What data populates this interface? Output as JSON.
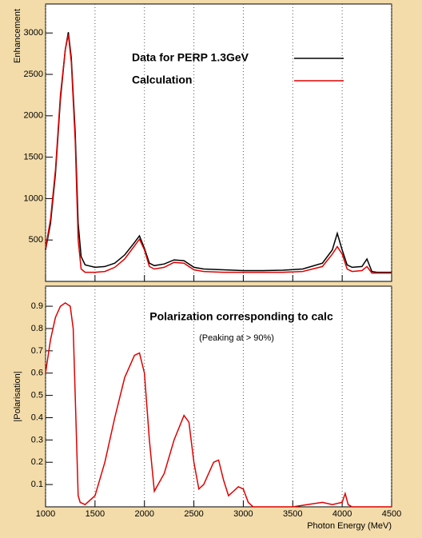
{
  "chart_data": [
    {
      "type": "line",
      "ylabel": "Enhancement",
      "x": [
        1000,
        1050,
        1100,
        1150,
        1200,
        1230,
        1260,
        1300,
        1330,
        1360,
        1400,
        1500,
        1600,
        1700,
        1800,
        1900,
        1950,
        2000,
        2050,
        2100,
        2200,
        2300,
        2400,
        2500,
        2600,
        2800,
        3000,
        3200,
        3400,
        3600,
        3800,
        3900,
        3950,
        4000,
        4050,
        4100,
        4200,
        4250,
        4300,
        4350,
        4400,
        4500
      ],
      "series": [
        {
          "name": "Data for PERP 1.3GeV",
          "color": "#000000",
          "values": [
            380,
            700,
            1300,
            2200,
            2800,
            3010,
            2700,
            1800,
            700,
            300,
            200,
            170,
            180,
            220,
            320,
            470,
            550,
            400,
            220,
            190,
            210,
            260,
            250,
            170,
            150,
            140,
            130,
            130,
            135,
            150,
            220,
            380,
            580,
            380,
            200,
            170,
            180,
            270,
            120,
            110,
            110,
            110
          ]
        },
        {
          "name": "Calculation",
          "color": "#e00000",
          "values": [
            400,
            750,
            1350,
            2250,
            2800,
            2980,
            2650,
            1700,
            500,
            150,
            110,
            110,
            120,
            170,
            270,
            430,
            510,
            380,
            180,
            150,
            170,
            230,
            220,
            140,
            120,
            110,
            110,
            110,
            110,
            120,
            180,
            330,
            420,
            330,
            150,
            120,
            130,
            180,
            100,
            100,
            100,
            100
          ]
        }
      ],
      "xlim": [
        1000,
        4500
      ],
      "xticks": [
        1000,
        1500,
        2000,
        2500,
        3000,
        3500,
        4000,
        4500
      ],
      "ylim": [
        0,
        3350
      ],
      "yticks": [
        500,
        1000,
        1500,
        2000,
        2500,
        3000
      ],
      "grid": true
    },
    {
      "type": "line",
      "ylabel": "|Polarisation|",
      "xlabel": "Photon Energy (MeV)",
      "annotations": [
        "Polarization corresponding to calc",
        "(Peaking at > 90%)"
      ],
      "x": [
        1000,
        1050,
        1100,
        1150,
        1200,
        1250,
        1280,
        1300,
        1330,
        1350,
        1400,
        1500,
        1600,
        1700,
        1800,
        1900,
        1950,
        2000,
        2050,
        2100,
        2200,
        2300,
        2400,
        2450,
        2500,
        2550,
        2600,
        2700,
        2750,
        2800,
        2850,
        2900,
        2950,
        3000,
        3050,
        3100,
        3500,
        3800,
        3900,
        4000,
        4030,
        4060,
        4100,
        4500
      ],
      "series": [
        {
          "name": "Polarization",
          "color": "#e00000",
          "values": [
            0.6,
            0.75,
            0.85,
            0.9,
            0.915,
            0.9,
            0.8,
            0.5,
            0.05,
            0.02,
            0.01,
            0.05,
            0.2,
            0.4,
            0.58,
            0.68,
            0.69,
            0.6,
            0.3,
            0.07,
            0.15,
            0.3,
            0.41,
            0.38,
            0.2,
            0.08,
            0.1,
            0.2,
            0.21,
            0.12,
            0.05,
            0.07,
            0.09,
            0.08,
            0.02,
            0,
            0,
            0.02,
            0.01,
            0.02,
            0.06,
            0.01,
            0,
            0
          ]
        }
      ],
      "xlim": [
        1000,
        4500
      ],
      "xticks": [
        1000,
        1500,
        2000,
        2500,
        3000,
        3500,
        4000,
        4500
      ],
      "ylim": [
        0,
        0.99
      ],
      "yticks": [
        0.1,
        0.2,
        0.3,
        0.4,
        0.5,
        0.6,
        0.7,
        0.8,
        0.9
      ],
      "grid": true
    }
  ]
}
